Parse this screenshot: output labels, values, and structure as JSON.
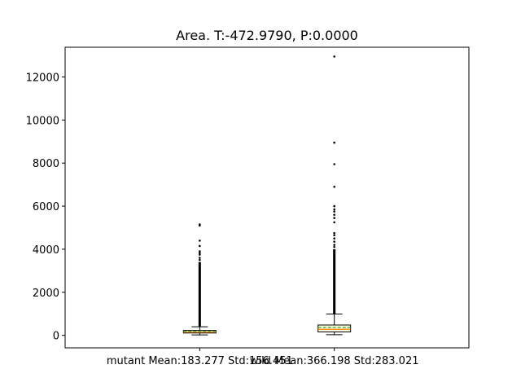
{
  "chart_data": {
    "type": "box",
    "title": "Area. T:-472.9790, P:0.0000",
    "xlabel": "",
    "ylabel": "",
    "ylim": [
      -580,
      13380
    ],
    "yticks": [
      0,
      2000,
      4000,
      6000,
      8000,
      10000,
      12000
    ],
    "grid": false,
    "colors": {
      "box_fill": "#ffffe0",
      "median": "#ff7f0e",
      "mean": "#2ca02c",
      "edge": "#000000"
    },
    "groups": [
      {
        "label": "mutant Mean:183.277 Std:156.451",
        "q1": 110,
        "median": 150,
        "q3": 230,
        "mean": 183.277,
        "whisker_low": 20,
        "whisker_high": 400,
        "flier_band": [
          400,
          3400
        ],
        "outliers": [
          3500,
          3600,
          3750,
          3820,
          3900,
          4150,
          4400,
          5100,
          5150
        ]
      },
      {
        "label": "wild Mean:366.198 Std:283.021",
        "q1": 160,
        "median": 280,
        "q3": 480,
        "mean": 366.198,
        "whisker_low": 30,
        "whisker_high": 990,
        "flier_band": [
          990,
          4000
        ],
        "outliers": [
          4100,
          4200,
          4350,
          4500,
          4650,
          4750,
          5250,
          5450,
          5600,
          5750,
          5850,
          6000,
          6900,
          7950,
          8950,
          12950
        ]
      }
    ]
  }
}
